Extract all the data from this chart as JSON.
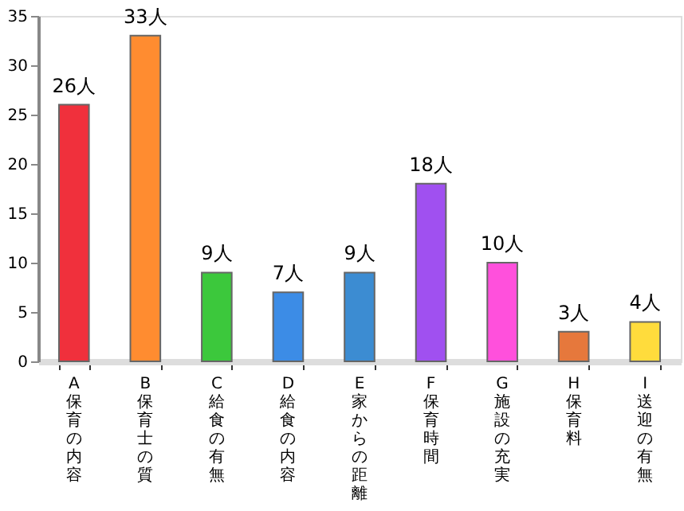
{
  "chart_data": {
    "type": "bar",
    "categories": [
      "A 保育の内容",
      "B 保育士の質",
      "C 給食の有無",
      "D 給食の内容",
      "E 家からの距離",
      "F 保育時間",
      "G 施設の充実",
      "H 保育料",
      "I 送迎の有無"
    ],
    "values": [
      26,
      33,
      9,
      7,
      9,
      18,
      10,
      3,
      4
    ],
    "colors": [
      "#f0303c",
      "#ff8c30",
      "#3cc83c",
      "#3c8ce6",
      "#3c8cd2",
      "#a050f0",
      "#ff50dc",
      "#e6783c",
      "#ffdc3c"
    ],
    "value_labels": [
      "26人",
      "33人",
      "9人",
      "7人",
      "9人",
      "18人",
      "10人",
      "3人",
      "4人"
    ],
    "ylim": [
      0,
      35
    ],
    "yticks": [
      0,
      5,
      10,
      15,
      20,
      25,
      30,
      35
    ],
    "grid": false
  }
}
